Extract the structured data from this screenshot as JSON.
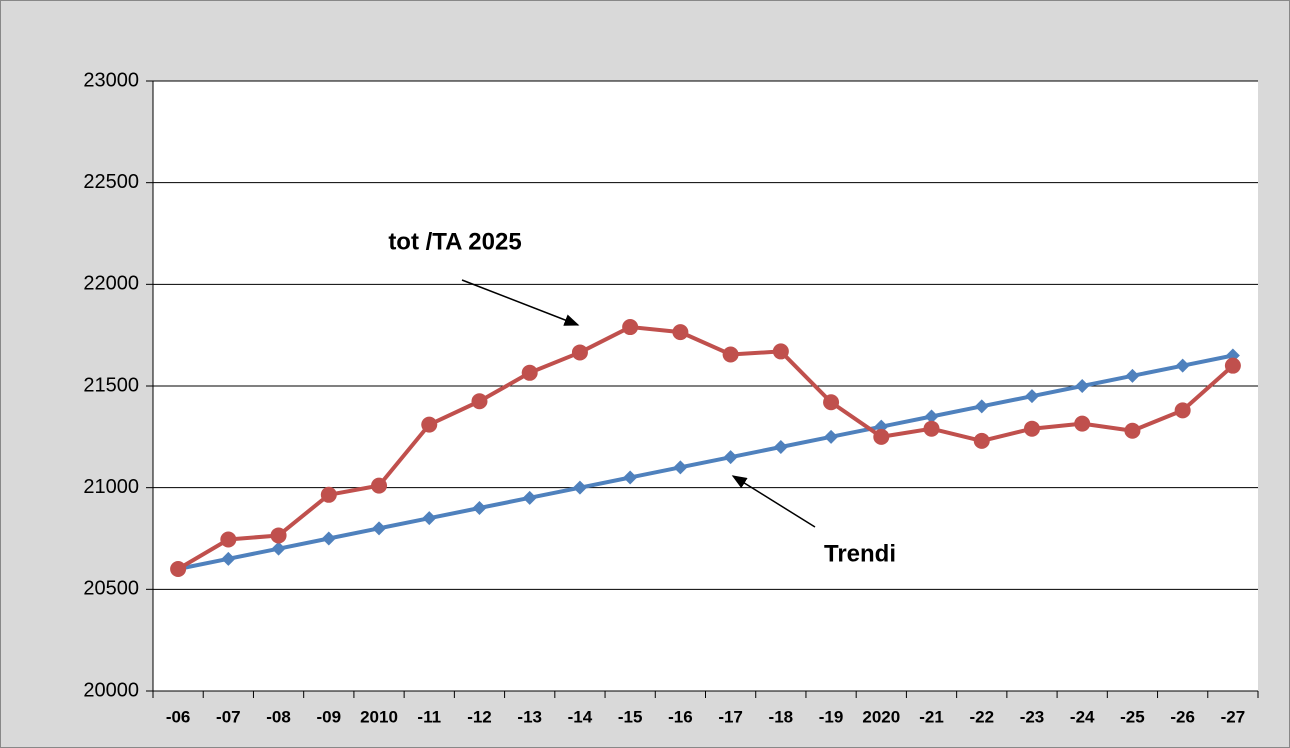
{
  "chart_data": {
    "type": "line",
    "categories": [
      "-06",
      "-07",
      "-08",
      "-09",
      "2010",
      "-11",
      "-12",
      "-13",
      "-14",
      "-15",
      "-16",
      "-17",
      "-18",
      "-19",
      "2020",
      "-21",
      "-22",
      "-23",
      "-24",
      "-25",
      "-26",
      "-27"
    ],
    "series": [
      {
        "name": "Trendi",
        "color": "#4f81bd",
        "marker": "diamond",
        "values": [
          20600,
          20650,
          20700,
          20750,
          20800,
          20850,
          20900,
          20950,
          21000,
          21050,
          21100,
          21150,
          21200,
          21250,
          21300,
          21350,
          21400,
          21450,
          21500,
          21550,
          21600,
          21650
        ]
      },
      {
        "name": "tot /TA 2025",
        "color": "#c0504d",
        "marker": "circle",
        "values": [
          20600,
          20745,
          20765,
          20965,
          21010,
          21310,
          21425,
          21565,
          21665,
          21790,
          21765,
          21655,
          21670,
          21420,
          21250,
          21290,
          21230,
          21290,
          21315,
          21280,
          21380,
          21600
        ]
      }
    ],
    "ylim": [
      20000,
      23000
    ],
    "yticks": [
      20000,
      20500,
      21000,
      21500,
      22000,
      22500,
      23000
    ],
    "grid": true
  }
}
